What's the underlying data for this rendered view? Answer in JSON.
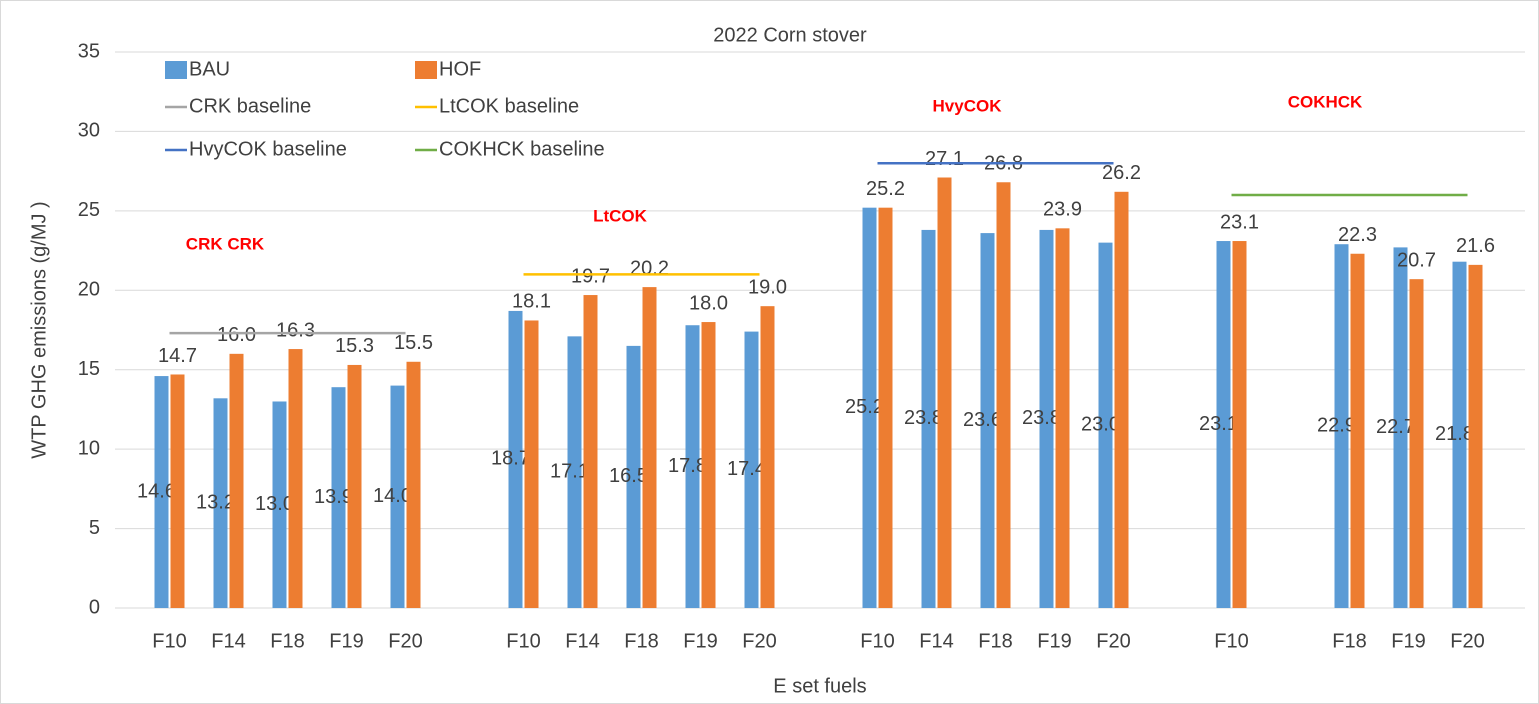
{
  "chart_data": {
    "type": "bar",
    "title": "2022 Corn stover",
    "x_label": "E set fuels",
    "y_label": "WTP GHG emissions (g/MJ )",
    "categories": [
      "F10",
      "F14",
      "F18",
      "F19",
      "F20",
      null,
      "F10",
      "F14",
      "F18",
      "F19",
      "F20",
      null,
      "F10",
      "F14",
      "F18",
      "F19",
      "F20",
      null,
      "F10",
      null,
      "F18",
      "F19",
      "F20"
    ],
    "series": [
      {
        "name": "BAU",
        "color": "#5b9bd5",
        "values": [
          14.6,
          13.2,
          13.0,
          13.9,
          14.0,
          null,
          18.7,
          17.1,
          16.5,
          17.8,
          17.4,
          null,
          25.2,
          23.8,
          23.6,
          23.8,
          23.0,
          null,
          23.1,
          null,
          22.9,
          22.7,
          21.8
        ],
        "value_labels": [
          "14.6",
          "13.2",
          "13.0",
          "13.9",
          "14.0",
          null,
          "18.7",
          "17.1",
          "16.5",
          "17.8",
          "17.4",
          null,
          "25.2",
          "23.8",
          "23.6",
          "23.8",
          "23.0",
          null,
          "23.1",
          null,
          "22.9",
          "22.7",
          "21.8"
        ]
      },
      {
        "name": "HOF",
        "color": "#ed7d31",
        "values": [
          14.7,
          16.0,
          16.3,
          15.3,
          15.5,
          null,
          18.1,
          19.7,
          20.2,
          18.0,
          19.0,
          null,
          25.2,
          27.1,
          26.8,
          23.9,
          26.2,
          null,
          23.1,
          null,
          22.3,
          20.7,
          21.6
        ],
        "value_labels": [
          "14.7",
          "16.0",
          "16.3",
          "15.3",
          "15.5",
          null,
          "18.1",
          "19.7",
          "20.2",
          "18.0",
          "19.0",
          null,
          "25.2",
          "27.1",
          "26.8",
          "23.9",
          "26.2",
          null,
          "23.1",
          null,
          "22.3",
          "20.7",
          "21.6"
        ]
      },
      {
        "name": "CRK baseline",
        "color": "#a5a5a5",
        "type": "line",
        "values": [
          17.3,
          17.3,
          17.3,
          17.3,
          17.3,
          null,
          null,
          null,
          null,
          null,
          null,
          null,
          null,
          null,
          null,
          null,
          null,
          null,
          null,
          null,
          null,
          null,
          null
        ]
      },
      {
        "name": "LtCOK baseline",
        "color": "#ffc000",
        "type": "line",
        "values": [
          null,
          null,
          null,
          null,
          null,
          null,
          21.0,
          21.0,
          21.0,
          21.0,
          21.0,
          null,
          null,
          null,
          null,
          null,
          null,
          null,
          null,
          null,
          null,
          null,
          null
        ]
      },
      {
        "name": "HvyCOK baseline",
        "color": "#4472c4",
        "type": "line",
        "values": [
          null,
          null,
          null,
          null,
          null,
          null,
          null,
          null,
          null,
          null,
          null,
          null,
          28.0,
          28.0,
          28.0,
          28.0,
          28.0,
          null,
          null,
          null,
          null,
          null,
          null
        ]
      },
      {
        "name": "COKHCK baseline",
        "color": "#70ad47",
        "type": "line",
        "values": [
          null,
          null,
          null,
          null,
          null,
          null,
          null,
          null,
          null,
          null,
          null,
          null,
          null,
          null,
          null,
          null,
          null,
          null,
          26.0,
          26.0,
          26.0,
          26.0,
          26.0
        ]
      }
    ],
    "annotations": [
      "CRK CRK",
      "LtCOK",
      "HvyCOK",
      "COKHCK"
    ],
    "annotation_color": "#ff0000",
    "ylim": [
      0,
      35
    ],
    "yticks": [
      0,
      5,
      10,
      15,
      20,
      25,
      30,
      35
    ],
    "grid": true
  }
}
